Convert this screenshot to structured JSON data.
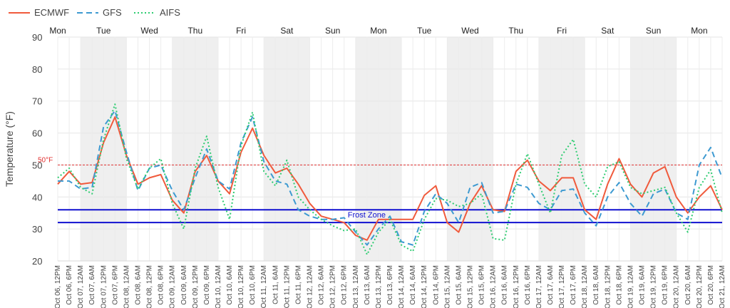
{
  "chart_data": {
    "type": "line",
    "title": "",
    "xlabel": "",
    "ylabel": "Temperature (°F)",
    "ylim": [
      20,
      90
    ],
    "yticks": [
      20,
      30,
      40,
      50,
      60,
      70,
      80,
      90
    ],
    "grid": true,
    "legend_position": "top-left",
    "x": [
      "Oct 06, 12PM",
      "Oct 06, 6PM",
      "Oct 07, 12AM",
      "Oct 07, 6AM",
      "Oct 07, 12PM",
      "Oct 07, 6PM",
      "Oct 08, 12AM",
      "Oct 08, 6AM",
      "Oct 08, 12PM",
      "Oct 08, 6PM",
      "Oct 09, 12AM",
      "Oct 09, 6AM",
      "Oct 09, 12PM",
      "Oct 09, 6PM",
      "Oct 10, 12AM",
      "Oct 10, 6AM",
      "Oct 10, 12PM",
      "Oct 10, 6PM",
      "Oct 11, 12AM",
      "Oct 11, 6AM",
      "Oct 11, 12PM",
      "Oct 11, 6PM",
      "Oct 12, 12AM",
      "Oct 12, 6AM",
      "Oct 12, 12PM",
      "Oct 12, 6PM",
      "Oct 13, 12AM",
      "Oct 13, 6AM",
      "Oct 13, 12PM",
      "Oct 13, 6PM",
      "Oct 14, 12AM",
      "Oct 14, 6AM",
      "Oct 14, 12PM",
      "Oct 14, 6PM",
      "Oct 15, 12AM",
      "Oct 15, 6AM",
      "Oct 15, 12PM",
      "Oct 15, 6PM",
      "Oct 16, 12AM",
      "Oct 16, 6AM",
      "Oct 16, 12PM",
      "Oct 16, 6PM",
      "Oct 17, 12AM",
      "Oct 17, 6AM",
      "Oct 17, 12PM",
      "Oct 17, 6PM",
      "Oct 18, 12AM",
      "Oct 18, 6AM",
      "Oct 18, 12PM",
      "Oct 18, 6PM",
      "Oct 19, 12AM",
      "Oct 19, 6AM",
      "Oct 19, 12PM",
      "Oct 19, 6PM",
      "Oct 20, 12AM",
      "Oct 20, 6AM",
      "Oct 20, 12PM",
      "Oct 20, 6PM",
      "Oct 21, 12AM"
    ],
    "series": [
      {
        "name": "ECMWF",
        "color": "#f05a3c",
        "dash": "solid",
        "values": [
          44,
          48,
          44,
          44.5,
          57,
          65,
          53,
          44,
          46,
          47,
          39,
          35,
          48,
          53,
          45,
          41,
          54,
          61.5,
          53,
          47.5,
          49,
          44,
          38,
          34,
          33,
          32,
          28,
          26.5,
          33,
          33,
          33,
          33,
          40.5,
          43.5,
          32,
          29,
          38,
          43.5,
          36,
          35.5,
          48,
          51.5,
          45,
          42,
          46,
          46,
          36,
          33,
          44,
          52,
          44,
          40,
          47.5,
          49.5,
          40,
          35,
          40,
          43.5,
          36
        ]
      },
      {
        "name": "GFS",
        "color": "#3d9ad1",
        "dash": "dashed",
        "values": [
          45,
          45,
          42.5,
          43,
          62,
          67,
          54,
          42,
          49,
          50,
          42,
          36,
          46,
          55,
          45,
          42.5,
          57,
          65,
          51,
          45,
          44,
          36,
          34,
          33,
          33,
          33.5,
          29,
          25,
          30,
          34,
          26,
          25,
          35.5,
          41,
          38,
          32,
          43,
          44.5,
          35,
          35.5,
          44,
          43,
          38,
          36,
          42,
          42.5,
          35,
          31,
          40,
          44.5,
          38,
          34,
          41,
          42.5,
          35,
          33,
          50,
          55.5,
          46
        ]
      },
      {
        "name": "AIFS",
        "color": "#2ecc71",
        "dash": "dotted",
        "values": [
          46,
          49,
          43,
          41,
          58,
          69,
          52,
          42.5,
          49,
          52,
          38,
          30,
          49,
          59,
          43,
          33,
          56,
          66.5,
          48,
          43.5,
          51.5,
          40,
          36,
          33,
          31,
          29.5,
          30,
          22,
          29,
          33,
          25,
          23,
          33,
          39.5,
          39,
          37,
          38,
          41,
          27,
          26.5,
          44,
          53.5,
          44,
          35,
          53,
          58,
          44,
          40,
          49.5,
          51,
          43,
          41,
          42,
          43,
          35,
          29,
          43,
          48.5,
          35
        ]
      }
    ],
    "reference_lines": [
      {
        "value": 50,
        "label": "50°F",
        "color": "#e03030",
        "style": "dotted"
      },
      {
        "value": 36,
        "label": "",
        "color": "#1010d0",
        "style": "solid"
      },
      {
        "value": 32,
        "label": "",
        "color": "#1010d0",
        "style": "solid"
      }
    ],
    "zone_label": "Frost Zone",
    "day_labels": [
      "Mon",
      "Tue",
      "Wed",
      "Thu",
      "Fri",
      "Sat",
      "Sun",
      "Mon",
      "Tue",
      "Wed",
      "Thu",
      "Fri",
      "Sat",
      "Sun",
      "Mon"
    ]
  }
}
